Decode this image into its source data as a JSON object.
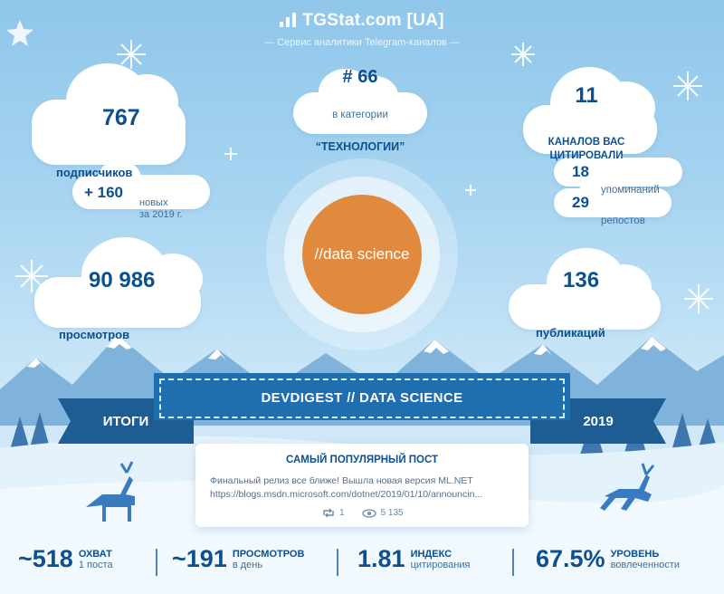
{
  "header": {
    "title": "TGStat.com [UA]",
    "subtitle": "— Сервис аналитики Telegram-каналов —"
  },
  "subscribers": {
    "value": "767",
    "label": "подписчиков"
  },
  "new_subs": {
    "value": "+ 160",
    "label_line1": "новых",
    "label_line2": "за 2019 г."
  },
  "category": {
    "rank": "# 66",
    "prefix": "в категории",
    "name": "“ТЕХНОЛОГИИ”"
  },
  "citing": {
    "value": "11",
    "label_line1": "КАНАЛОВ ВАС",
    "label_line2": "ЦИТИРОВАЛИ"
  },
  "mentions": {
    "value": "18",
    "label": "упоминаний"
  },
  "reposts": {
    "value": "29",
    "label": "репостов"
  },
  "views": {
    "value": "90 986",
    "label": "просмотров"
  },
  "posts": {
    "value": "136",
    "label": "публикаций"
  },
  "channel": {
    "logo_text": "//data science",
    "logo_color": "#e18a3e"
  },
  "banner": {
    "left": "ИТОГИ",
    "title": "DEVDIGEST // DATA SCIENCE",
    "right": "2019"
  },
  "popular_post": {
    "title": "САМЫЙ ПОПУЛЯРНЫЙ ПОСТ",
    "line1": "Финальный релиз все ближе! Вышла новая версия ML.NET",
    "line2": "https://blogs.msdn.microsoft.com/dotnet/2019/01/10/announcin...",
    "reposts": "1",
    "views": "5 135"
  },
  "stats": [
    {
      "value": "~518",
      "label1": "ОХВАТ",
      "label2": "1 поста"
    },
    {
      "value": "~191",
      "label1": "ПРОСМОТРОВ",
      "label2": "в день"
    },
    {
      "value": "1.81",
      "label1": "ИНДЕКС",
      "label2": "цитирования"
    },
    {
      "value": "67.5%",
      "label1": "УРОВЕНЬ",
      "label2": "вовлеченности"
    }
  ],
  "colors": {
    "primary": "#0e4f8e",
    "ribbon": "#1f6eb0",
    "ribbon_dark": "#1e5d93",
    "sky": "#a9d5f1"
  }
}
